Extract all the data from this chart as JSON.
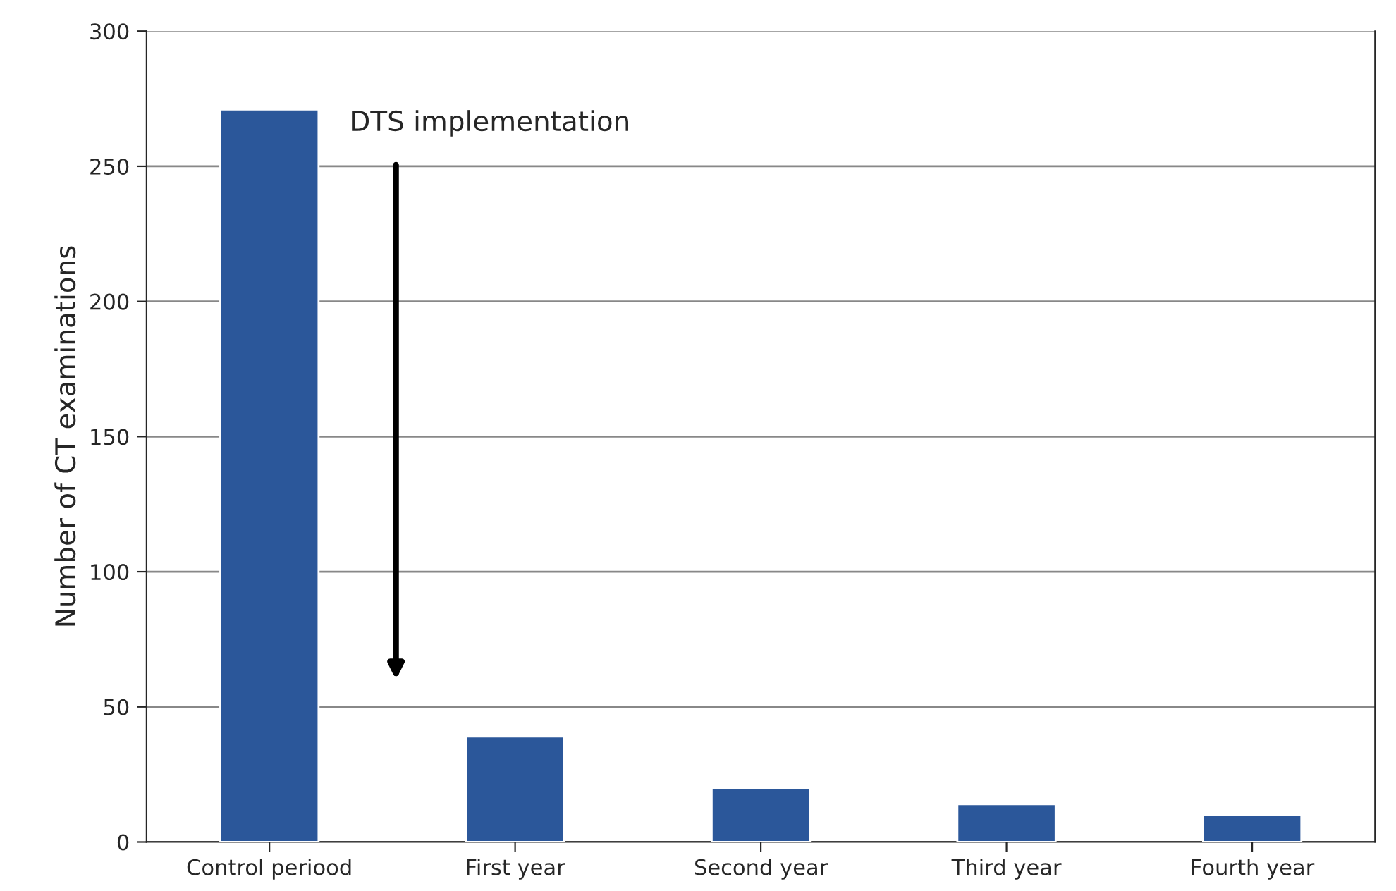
{
  "chart_data": {
    "type": "bar",
    "ylabel": "Number of CT examinations",
    "categories": [
      "Control periood",
      "First year",
      "Second year",
      "Third year",
      "Fourth year"
    ],
    "values": [
      271,
      39,
      20,
      14,
      10
    ],
    "color": "#2b579a",
    "ylim": [
      0,
      300
    ],
    "yticks": [
      0,
      50,
      100,
      150,
      200,
      250,
      300
    ],
    "grid": "y",
    "annotations": [
      "DTS implementation"
    ]
  }
}
